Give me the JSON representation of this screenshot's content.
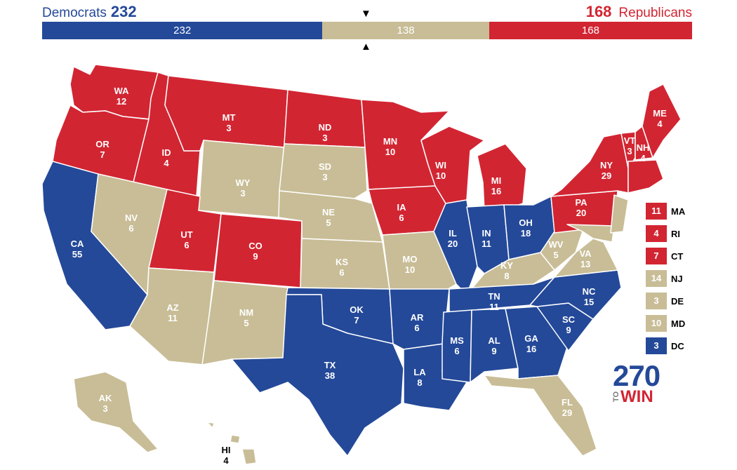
{
  "header": {
    "dem_label": "Democrats",
    "dem_total": "232",
    "rep_total": "168",
    "rep_label": "Republicans",
    "down_arrow": "▼",
    "up_arrow": "▲"
  },
  "bar": {
    "segments": [
      {
        "label": "232",
        "value": 232,
        "color": "#244999"
      },
      {
        "label": "138",
        "value": 138,
        "color": "#c8bd96"
      },
      {
        "label": "168",
        "value": 168,
        "color": "#d22532"
      }
    ]
  },
  "colors": {
    "dem": "#244999",
    "rep": "#d22532",
    "tossup": "#c8bd96"
  },
  "states": [
    {
      "abbr": "WA",
      "ev": "12",
      "party": "rep"
    },
    {
      "abbr": "OR",
      "ev": "7",
      "party": "rep"
    },
    {
      "abbr": "CA",
      "ev": "55",
      "party": "dem"
    },
    {
      "abbr": "ID",
      "ev": "4",
      "party": "rep"
    },
    {
      "abbr": "NV",
      "ev": "6",
      "party": "tossup"
    },
    {
      "abbr": "MT",
      "ev": "3",
      "party": "rep"
    },
    {
      "abbr": "WY",
      "ev": "3",
      "party": "tossup"
    },
    {
      "abbr": "UT",
      "ev": "6",
      "party": "rep"
    },
    {
      "abbr": "AZ",
      "ev": "11",
      "party": "tossup"
    },
    {
      "abbr": "CO",
      "ev": "9",
      "party": "rep"
    },
    {
      "abbr": "NM",
      "ev": "5",
      "party": "tossup"
    },
    {
      "abbr": "ND",
      "ev": "3",
      "party": "rep"
    },
    {
      "abbr": "SD",
      "ev": "3",
      "party": "tossup"
    },
    {
      "abbr": "NE",
      "ev": "5",
      "party": "tossup"
    },
    {
      "abbr": "KS",
      "ev": "6",
      "party": "tossup"
    },
    {
      "abbr": "OK",
      "ev": "7",
      "party": "dem"
    },
    {
      "abbr": "TX",
      "ev": "38",
      "party": "dem"
    },
    {
      "abbr": "MN",
      "ev": "10",
      "party": "rep"
    },
    {
      "abbr": "IA",
      "ev": "6",
      "party": "rep"
    },
    {
      "abbr": "MO",
      "ev": "10",
      "party": "tossup"
    },
    {
      "abbr": "AR",
      "ev": "6",
      "party": "dem"
    },
    {
      "abbr": "LA",
      "ev": "8",
      "party": "dem"
    },
    {
      "abbr": "WI",
      "ev": "10",
      "party": "rep"
    },
    {
      "abbr": "IL",
      "ev": "20",
      "party": "dem"
    },
    {
      "abbr": "MI",
      "ev": "16",
      "party": "rep"
    },
    {
      "abbr": "IN",
      "ev": "11",
      "party": "dem"
    },
    {
      "abbr": "OH",
      "ev": "18",
      "party": "dem"
    },
    {
      "abbr": "KY",
      "ev": "8",
      "party": "tossup"
    },
    {
      "abbr": "TN",
      "ev": "11",
      "party": "dem"
    },
    {
      "abbr": "MS",
      "ev": "6",
      "party": "dem"
    },
    {
      "abbr": "AL",
      "ev": "9",
      "party": "dem"
    },
    {
      "abbr": "GA",
      "ev": "16",
      "party": "dem"
    },
    {
      "abbr": "FL",
      "ev": "29",
      "party": "tossup"
    },
    {
      "abbr": "SC",
      "ev": "9",
      "party": "dem"
    },
    {
      "abbr": "NC",
      "ev": "15",
      "party": "dem"
    },
    {
      "abbr": "VA",
      "ev": "13",
      "party": "tossup"
    },
    {
      "abbr": "WV",
      "ev": "5",
      "party": "tossup"
    },
    {
      "abbr": "PA",
      "ev": "20",
      "party": "rep"
    },
    {
      "abbr": "NY",
      "ev": "29",
      "party": "rep"
    },
    {
      "abbr": "VT",
      "ev": "3",
      "party": "rep"
    },
    {
      "abbr": "NH",
      "ev": "4",
      "party": "rep"
    },
    {
      "abbr": "ME",
      "ev": "4",
      "party": "rep"
    },
    {
      "abbr": "AK",
      "ev": "3",
      "party": "tossup"
    },
    {
      "abbr": "HI",
      "ev": "4",
      "party": "tossup"
    }
  ],
  "legend": [
    {
      "ev": "11",
      "abbr": "MA",
      "party": "rep"
    },
    {
      "ev": "4",
      "abbr": "RI",
      "party": "rep"
    },
    {
      "ev": "7",
      "abbr": "CT",
      "party": "rep"
    },
    {
      "ev": "14",
      "abbr": "NJ",
      "party": "tossup"
    },
    {
      "ev": "3",
      "abbr": "DE",
      "party": "tossup"
    },
    {
      "ev": "10",
      "abbr": "MD",
      "party": "tossup"
    },
    {
      "ev": "3",
      "abbr": "DC",
      "party": "dem"
    }
  ],
  "logo": {
    "number": "270",
    "to": "TO",
    "win": "WIN"
  }
}
